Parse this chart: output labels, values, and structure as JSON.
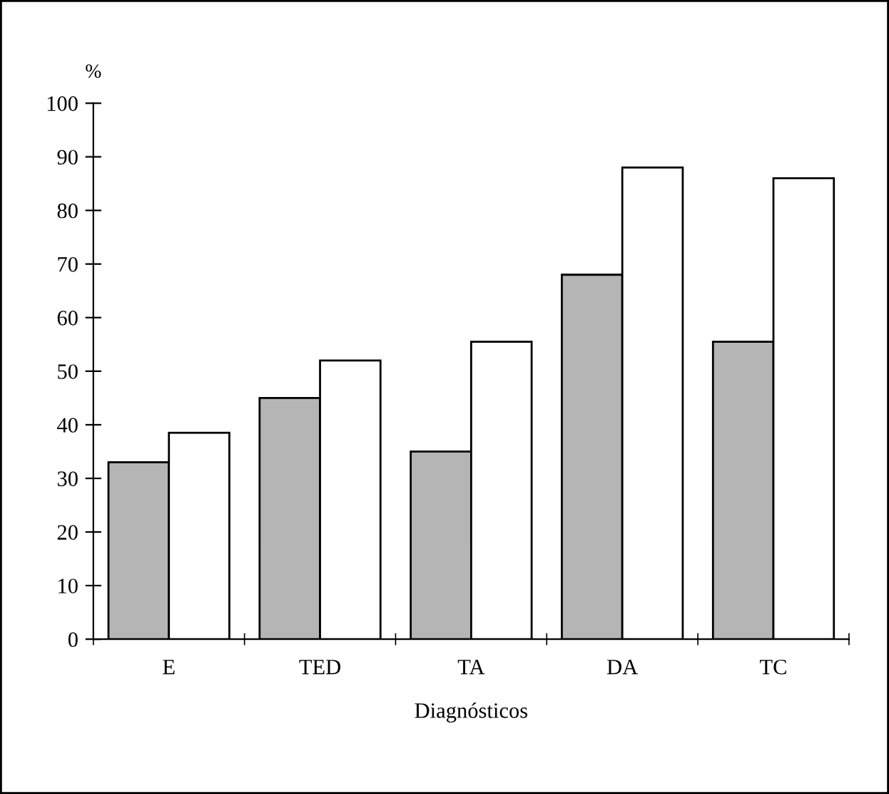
{
  "chart_data": {
    "type": "bar",
    "xlabel": "Diagnósticos",
    "ylabel": "%",
    "categories": [
      "E",
      "TED",
      "TA",
      "DA",
      "TC"
    ],
    "series": [
      {
        "color": "#b5b5b5",
        "values": [
          33,
          45,
          35,
          68,
          55.5
        ]
      },
      {
        "color": "#ffffff",
        "values": [
          38.5,
          52,
          55.5,
          88,
          86
        ]
      }
    ],
    "ylim": [
      0,
      100
    ],
    "yticks": [
      0,
      10,
      20,
      30,
      40,
      50,
      60,
      70,
      80,
      90,
      100
    ],
    "grid": false,
    "legend": false
  }
}
